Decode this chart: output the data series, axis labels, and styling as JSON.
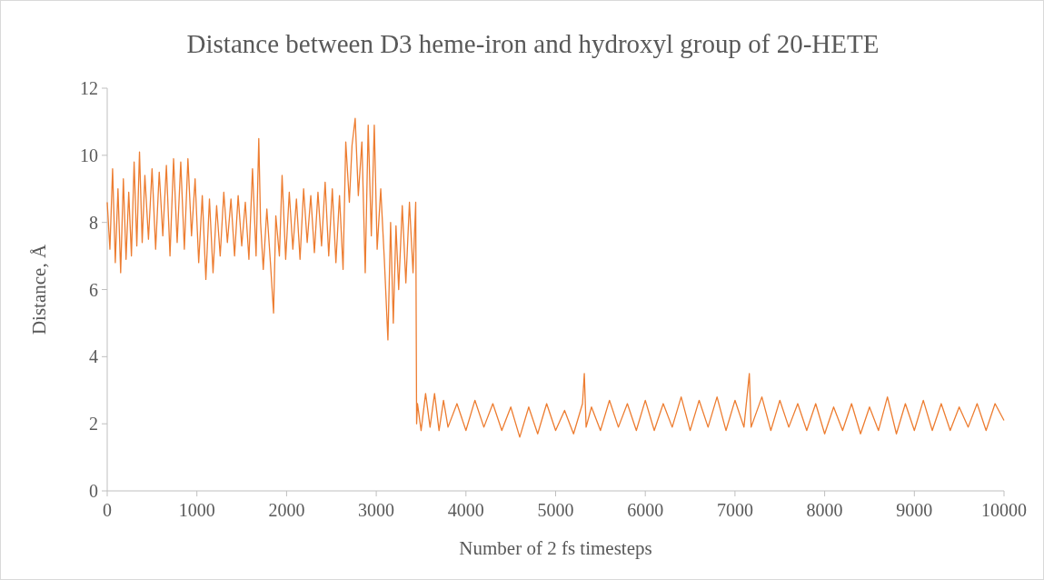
{
  "chart_data": {
    "type": "line",
    "title": "Distance between D3 heme-iron and hydroxyl group of 20-HETE",
    "xlabel": "Number of 2 fs timesteps",
    "ylabel": "Distance, Å",
    "xlim": [
      0,
      10000
    ],
    "xticks": [
      0,
      1000,
      2000,
      3000,
      4000,
      5000,
      6000,
      7000,
      8000,
      9000,
      10000
    ],
    "ylim": [
      0,
      12
    ],
    "yticks": [
      0,
      2,
      4,
      6,
      8,
      10,
      12
    ],
    "grid": false,
    "marker": "none",
    "line_style": "solid",
    "series": [
      {
        "color": "#ed7d31",
        "x": [
          0,
          30,
          60,
          90,
          120,
          150,
          180,
          210,
          240,
          270,
          300,
          330,
          360,
          390,
          420,
          460,
          500,
          540,
          580,
          620,
          660,
          700,
          740,
          780,
          820,
          860,
          900,
          940,
          980,
          1020,
          1060,
          1100,
          1140,
          1180,
          1220,
          1260,
          1300,
          1340,
          1380,
          1420,
          1460,
          1500,
          1540,
          1580,
          1620,
          1660,
          1690,
          1710,
          1740,
          1780,
          1820,
          1855,
          1880,
          1920,
          1950,
          1990,
          2030,
          2070,
          2110,
          2150,
          2190,
          2230,
          2270,
          2310,
          2350,
          2390,
          2430,
          2470,
          2510,
          2550,
          2590,
          2630,
          2660,
          2700,
          2730,
          2765,
          2800,
          2840,
          2877,
          2910,
          2945,
          2978,
          3010,
          3050,
          3090,
          3130,
          3160,
          3190,
          3220,
          3250,
          3290,
          3330,
          3370,
          3410,
          3440,
          3450,
          3460,
          3500,
          3550,
          3600,
          3650,
          3700,
          3750,
          3800,
          3900,
          4000,
          4100,
          4200,
          4300,
          4400,
          4500,
          4600,
          4700,
          4800,
          4900,
          5000,
          5100,
          5200,
          5300,
          5320,
          5340,
          5400,
          5500,
          5600,
          5700,
          5800,
          5900,
          6000,
          6100,
          6200,
          6300,
          6400,
          6500,
          6600,
          6700,
          6800,
          6900,
          7000,
          7100,
          7160,
          7180,
          7300,
          7400,
          7500,
          7600,
          7700,
          7800,
          7900,
          8000,
          8100,
          8200,
          8300,
          8400,
          8500,
          8600,
          8700,
          8800,
          8900,
          9000,
          9100,
          9200,
          9300,
          9400,
          9500,
          9600,
          9700,
          9800,
          9900,
          10000
        ],
        "values": [
          8.6,
          7.2,
          9.6,
          6.8,
          9.0,
          6.5,
          9.3,
          6.9,
          8.9,
          7.0,
          9.8,
          7.3,
          10.1,
          7.4,
          9.4,
          7.5,
          9.6,
          7.2,
          9.5,
          7.6,
          9.7,
          7.0,
          9.9,
          7.4,
          9.8,
          7.2,
          9.9,
          7.6,
          9.3,
          6.8,
          8.8,
          6.3,
          8.7,
          6.5,
          8.5,
          7.0,
          8.9,
          7.4,
          8.7,
          7.0,
          8.8,
          7.3,
          8.6,
          6.9,
          9.6,
          7.0,
          10.5,
          8.0,
          6.6,
          8.4,
          6.8,
          5.3,
          8.2,
          7.0,
          9.4,
          6.9,
          8.9,
          7.2,
          8.7,
          6.9,
          9.0,
          7.4,
          8.8,
          7.1,
          8.9,
          7.3,
          9.2,
          7.0,
          9.0,
          6.8,
          8.8,
          6.6,
          10.4,
          8.6,
          10.3,
          11.1,
          8.8,
          10.4,
          6.5,
          10.9,
          7.6,
          10.9,
          7.2,
          9.0,
          6.9,
          4.5,
          8.0,
          5.0,
          7.9,
          6.0,
          8.5,
          6.2,
          8.6,
          6.5,
          8.6,
          2.0,
          2.6,
          1.8,
          2.9,
          1.9,
          2.9,
          1.8,
          2.7,
          1.9,
          2.6,
          1.8,
          2.7,
          1.9,
          2.6,
          1.8,
          2.5,
          1.6,
          2.5,
          1.7,
          2.6,
          1.8,
          2.4,
          1.7,
          2.6,
          3.5,
          1.9,
          2.5,
          1.8,
          2.7,
          1.9,
          2.6,
          1.8,
          2.7,
          1.8,
          2.6,
          1.9,
          2.8,
          1.8,
          2.7,
          1.9,
          2.8,
          1.8,
          2.7,
          1.9,
          3.5,
          1.9,
          2.8,
          1.8,
          2.7,
          1.9,
          2.6,
          1.8,
          2.6,
          1.7,
          2.5,
          1.8,
          2.6,
          1.7,
          2.5,
          1.8,
          2.8,
          1.7,
          2.6,
          1.8,
          2.7,
          1.8,
          2.6,
          1.8,
          2.5,
          1.9,
          2.6,
          1.8,
          2.6,
          2.1
        ]
      }
    ]
  }
}
